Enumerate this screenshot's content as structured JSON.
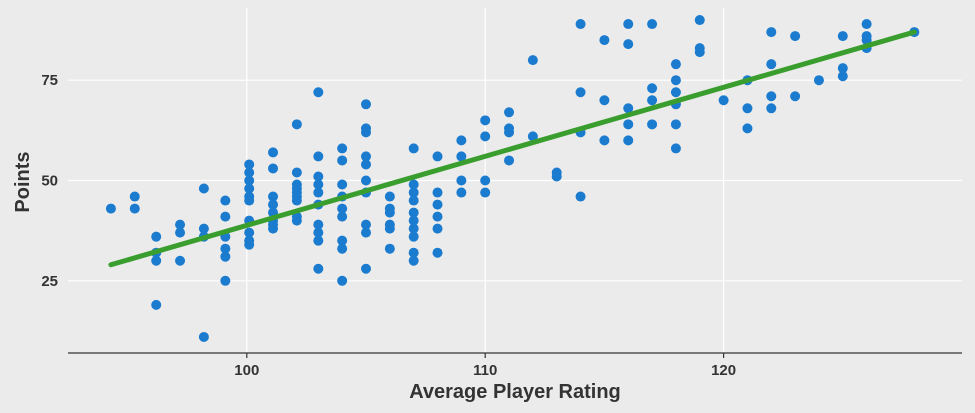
{
  "chart_data": {
    "type": "scatter",
    "title": "",
    "xlabel": "Average Player Rating",
    "ylabel": "Points",
    "xlim": [
      92.5,
      130
    ],
    "ylim": [
      7,
      93
    ],
    "x_ticks": [
      100,
      110,
      120
    ],
    "y_ticks": [
      25,
      50,
      75
    ],
    "grid": true,
    "legend": "none",
    "point_color": "#1a7bcf",
    "trend_color": "#3a9e2e",
    "background_color": "#ebebeb",
    "grid_color": "#ffffff",
    "trend_line": {
      "x": [
        94.3,
        128
      ],
      "y": [
        29,
        87
      ]
    },
    "series": [
      {
        "points": [
          [
            94.3,
            43
          ],
          [
            95.3,
            46
          ],
          [
            95.3,
            43
          ],
          [
            96.2,
            36
          ],
          [
            96.2,
            32
          ],
          [
            96.2,
            30
          ],
          [
            96.2,
            19
          ],
          [
            97.2,
            39
          ],
          [
            97.2,
            37
          ],
          [
            97.2,
            30
          ],
          [
            98.2,
            48
          ],
          [
            98.2,
            38
          ],
          [
            98.2,
            36
          ],
          [
            98.2,
            11
          ],
          [
            99.1,
            45
          ],
          [
            99.1,
            41
          ],
          [
            99.1,
            36
          ],
          [
            99.1,
            33
          ],
          [
            99.1,
            31
          ],
          [
            99.1,
            25
          ],
          [
            100.1,
            54
          ],
          [
            100.1,
            52
          ],
          [
            100.1,
            50
          ],
          [
            100.1,
            48
          ],
          [
            100.1,
            46
          ],
          [
            100.1,
            45
          ],
          [
            100.1,
            40
          ],
          [
            100.1,
            37
          ],
          [
            100.1,
            35
          ],
          [
            100.1,
            34
          ],
          [
            101.1,
            57
          ],
          [
            101.1,
            53
          ],
          [
            101.1,
            46
          ],
          [
            101.1,
            44
          ],
          [
            101.1,
            42
          ],
          [
            101.1,
            40
          ],
          [
            101.1,
            39
          ],
          [
            101.1,
            38
          ],
          [
            102.1,
            64
          ],
          [
            102.1,
            52
          ],
          [
            102.1,
            49
          ],
          [
            102.1,
            48
          ],
          [
            102.1,
            47
          ],
          [
            102.1,
            46
          ],
          [
            102.1,
            45
          ],
          [
            102.1,
            41
          ],
          [
            102.1,
            40
          ],
          [
            103.0,
            72
          ],
          [
            103.0,
            56
          ],
          [
            103.0,
            51
          ],
          [
            103.0,
            49
          ],
          [
            103.0,
            47
          ],
          [
            103.0,
            44
          ],
          [
            103.0,
            39
          ],
          [
            103.0,
            37
          ],
          [
            103.0,
            35
          ],
          [
            103.0,
            28
          ],
          [
            104.0,
            58
          ],
          [
            104.0,
            55
          ],
          [
            104.0,
            49
          ],
          [
            104.0,
            46
          ],
          [
            104.0,
            43
          ],
          [
            104.0,
            41
          ],
          [
            104.0,
            35
          ],
          [
            104.0,
            33
          ],
          [
            104.0,
            25
          ],
          [
            105.0,
            69
          ],
          [
            105.0,
            63
          ],
          [
            105.0,
            62
          ],
          [
            105.0,
            56
          ],
          [
            105.0,
            54
          ],
          [
            105.0,
            50
          ],
          [
            105.0,
            47
          ],
          [
            105.0,
            39
          ],
          [
            105.0,
            37
          ],
          [
            105.0,
            28
          ],
          [
            106.0,
            46
          ],
          [
            106.0,
            43
          ],
          [
            106.0,
            42
          ],
          [
            106.0,
            39
          ],
          [
            106.0,
            38
          ],
          [
            106.0,
            33
          ],
          [
            107.0,
            58
          ],
          [
            107.0,
            49
          ],
          [
            107.0,
            47
          ],
          [
            107.0,
            45
          ],
          [
            107.0,
            42
          ],
          [
            107.0,
            40
          ],
          [
            107.0,
            38
          ],
          [
            107.0,
            36
          ],
          [
            107.0,
            32
          ],
          [
            107.0,
            30
          ],
          [
            108.0,
            56
          ],
          [
            108.0,
            47
          ],
          [
            108.0,
            44
          ],
          [
            108.0,
            41
          ],
          [
            108.0,
            38
          ],
          [
            108.0,
            32
          ],
          [
            109.0,
            60
          ],
          [
            109.0,
            56
          ],
          [
            109.0,
            50
          ],
          [
            109.0,
            47
          ],
          [
            110.0,
            65
          ],
          [
            110.0,
            61
          ],
          [
            110.0,
            50
          ],
          [
            110.0,
            47
          ],
          [
            111.0,
            67
          ],
          [
            111.0,
            63
          ],
          [
            111.0,
            62
          ],
          [
            111.0,
            55
          ],
          [
            112.0,
            80
          ],
          [
            112.0,
            61
          ],
          [
            113.0,
            52
          ],
          [
            113.0,
            51
          ],
          [
            114.0,
            89
          ],
          [
            114.0,
            72
          ],
          [
            114.0,
            62
          ],
          [
            114.0,
            46
          ],
          [
            115.0,
            85
          ],
          [
            115.0,
            70
          ],
          [
            115.0,
            60
          ],
          [
            116.0,
            89
          ],
          [
            116.0,
            84
          ],
          [
            116.0,
            68
          ],
          [
            116.0,
            64
          ],
          [
            116.0,
            60
          ],
          [
            117.0,
            89
          ],
          [
            117.0,
            73
          ],
          [
            117.0,
            70
          ],
          [
            117.0,
            64
          ],
          [
            118.0,
            79
          ],
          [
            118.0,
            75
          ],
          [
            118.0,
            72
          ],
          [
            118.0,
            69
          ],
          [
            118.0,
            64
          ],
          [
            118.0,
            58
          ],
          [
            119.0,
            90
          ],
          [
            119.0,
            83
          ],
          [
            119.0,
            82
          ],
          [
            120.0,
            70
          ],
          [
            121.0,
            75
          ],
          [
            121.0,
            68
          ],
          [
            121.0,
            63
          ],
          [
            122.0,
            87
          ],
          [
            122.0,
            79
          ],
          [
            122.0,
            71
          ],
          [
            122.0,
            68
          ],
          [
            123.0,
            86
          ],
          [
            123.0,
            71
          ],
          [
            124.0,
            75
          ],
          [
            125.0,
            86
          ],
          [
            125.0,
            78
          ],
          [
            125.0,
            76
          ],
          [
            126.0,
            89
          ],
          [
            126.0,
            86
          ],
          [
            126.0,
            85
          ],
          [
            126.0,
            83
          ],
          [
            128.0,
            87
          ]
        ]
      }
    ]
  }
}
